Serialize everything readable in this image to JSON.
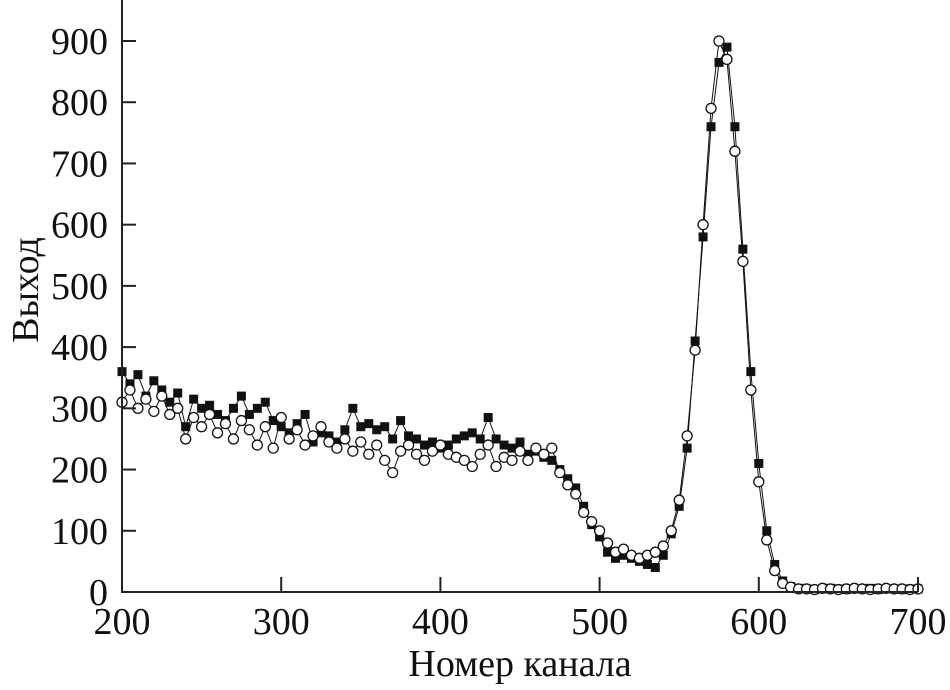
{
  "chart_data": {
    "type": "scatter",
    "title": "",
    "xlabel": "Номер канала",
    "ylabel": "Выход",
    "xlim": [
      200,
      700
    ],
    "ylim": [
      0,
      900
    ],
    "xticks": [
      "200",
      "300",
      "400",
      "500",
      "600",
      "700"
    ],
    "yticks": [
      "0",
      "100",
      "200",
      "300",
      "400",
      "500",
      "600",
      "700",
      "800",
      "900"
    ],
    "grid": false,
    "legend": "none",
    "x": [
      200,
      205,
      210,
      215,
      220,
      225,
      230,
      235,
      240,
      245,
      250,
      255,
      260,
      265,
      270,
      275,
      280,
      285,
      290,
      295,
      300,
      305,
      310,
      315,
      320,
      325,
      330,
      335,
      340,
      345,
      350,
      355,
      360,
      365,
      370,
      375,
      380,
      385,
      390,
      395,
      400,
      405,
      410,
      415,
      420,
      425,
      430,
      435,
      440,
      445,
      450,
      455,
      460,
      465,
      470,
      475,
      480,
      485,
      490,
      495,
      500,
      505,
      510,
      515,
      520,
      525,
      530,
      535,
      540,
      545,
      550,
      555,
      560,
      565,
      570,
      575,
      580,
      585,
      590,
      595,
      600,
      605,
      610,
      615,
      620,
      625,
      630,
      635,
      640,
      645,
      650,
      655,
      660,
      665,
      670,
      675,
      680,
      685,
      690,
      695,
      700
    ],
    "series": [
      {
        "marker": "filled-square",
        "color": "#111111",
        "values": [
          360,
          340,
          355,
          320,
          345,
          330,
          310,
          325,
          270,
          315,
          300,
          305,
          290,
          280,
          300,
          320,
          290,
          300,
          310,
          280,
          270,
          260,
          275,
          290,
          245,
          260,
          255,
          245,
          265,
          300,
          270,
          275,
          265,
          270,
          250,
          280,
          255,
          250,
          240,
          245,
          235,
          240,
          250,
          255,
          260,
          250,
          285,
          250,
          240,
          235,
          245,
          225,
          230,
          220,
          215,
          200,
          185,
          170,
          140,
          110,
          90,
          65,
          55,
          60,
          55,
          50,
          45,
          40,
          60,
          95,
          140,
          235,
          410,
          580,
          760,
          865,
          890,
          760,
          560,
          360,
          210,
          100,
          45,
          18,
          9,
          6,
          5,
          4,
          5,
          6,
          5,
          4,
          5,
          5,
          6,
          4,
          5,
          5,
          4,
          5,
          5
        ]
      },
      {
        "marker": "open-circle",
        "color": "#111111",
        "values": [
          310,
          330,
          300,
          315,
          295,
          320,
          290,
          300,
          250,
          285,
          270,
          290,
          260,
          275,
          250,
          280,
          265,
          240,
          270,
          235,
          285,
          250,
          265,
          240,
          255,
          270,
          245,
          235,
          250,
          230,
          245,
          225,
          240,
          215,
          195,
          230,
          240,
          225,
          215,
          230,
          240,
          225,
          220,
          215,
          205,
          225,
          240,
          205,
          220,
          215,
          230,
          215,
          235,
          225,
          235,
          195,
          175,
          160,
          130,
          115,
          100,
          80,
          65,
          70,
          60,
          55,
          60,
          65,
          75,
          100,
          150,
          255,
          395,
          600,
          790,
          900,
          870,
          720,
          540,
          330,
          180,
          85,
          35,
          14,
          8,
          5,
          5,
          4,
          6,
          5,
          4,
          5,
          6,
          5,
          4,
          5,
          6,
          5,
          5,
          4,
          5
        ]
      }
    ]
  }
}
